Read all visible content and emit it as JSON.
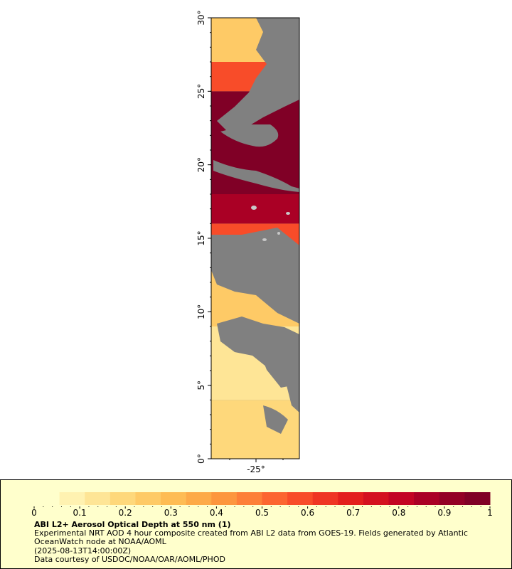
{
  "map": {
    "lat_ticks": [
      "0°",
      "5°",
      "10°",
      "15°",
      "20°",
      "25°",
      "30°"
    ],
    "lon_ticks": [
      "-25°"
    ],
    "no_data_color": "#808080",
    "bands": [
      {
        "lat_from": 0,
        "lat_to": 4,
        "aod": 0.2
      },
      {
        "lat_from": 4,
        "lat_to": 9,
        "aod": 0.15
      },
      {
        "lat_from": 9,
        "lat_to": 14,
        "aod": 0.25
      },
      {
        "lat_from": 14,
        "lat_to": 16,
        "aod": 0.6
      },
      {
        "lat_from": 16,
        "lat_to": 18,
        "aod": 0.85
      },
      {
        "lat_from": 18,
        "lat_to": 25,
        "aod": 1.0
      },
      {
        "lat_from": 25,
        "lat_to": 27,
        "aod": 0.6
      },
      {
        "lat_from": 27,
        "lat_to": 30,
        "aod": 0.25
      }
    ]
  },
  "colorbar": {
    "min": 0,
    "max": 1,
    "tick_labels": [
      "0",
      "0.1",
      "0.2",
      "0.3",
      "0.4",
      "0.5",
      "0.6",
      "0.7",
      "0.8",
      "0.9",
      "1"
    ],
    "colors": [
      "#ffffcc",
      "#fff2b1",
      "#fee596",
      "#fed87b",
      "#feca66",
      "#febc54",
      "#fdaa48",
      "#fd963e",
      "#fd7f38",
      "#fc6530",
      "#f84c29",
      "#ef3523",
      "#e31f1d",
      "#d4111f",
      "#c30423",
      "#aa0025",
      "#930026",
      "#800026"
    ]
  },
  "legend": {
    "title": "ABI L2+ Aerosol Optical Depth at 550 nm (1)",
    "description": "Experimental NRT AOD 4 hour composite created from ABI L2 data from GOES-19. Fields generated by Atlantic OceanWatch node at NOAA/AOML",
    "timestamp": "(2025-08-13T14:00:00Z)",
    "credit": "Data courtesy of USDOC/NOAA/OAR/AOML/PHOD"
  }
}
